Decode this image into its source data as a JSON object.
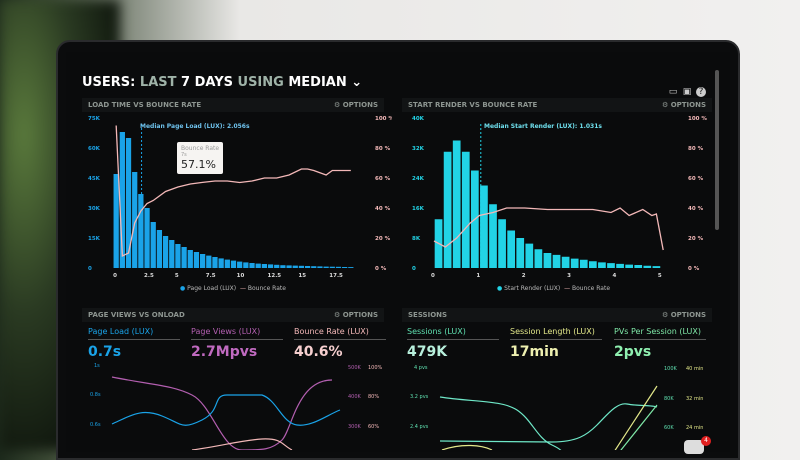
{
  "header": {
    "prefix": "USERS:",
    "range_dim": "LAST",
    "range": "7 DAYS",
    "using": "USING",
    "stat": "MEDIAN",
    "chevron": "chevron-down-icon",
    "icons": [
      "monitor-icon",
      "image-icon",
      "help-icon"
    ]
  },
  "options_label": "OPTIONS",
  "panels": [
    {
      "title": "LOAD TIME VS BOUNCE RATE",
      "median_label": "Median Page Load (LUX): 2.056s",
      "tooltip": {
        "title": "Bounce Rate",
        "sub": "7s",
        "value": "57.1%"
      },
      "legend": [
        "Page Load (LUX)",
        "Bounce Rate"
      ]
    },
    {
      "title": "START RENDER VS BOUNCE RATE",
      "median_label": "Median Start Render (LUX): 1.031s",
      "legend": [
        "Start Render (LUX)",
        "Bounce Rate"
      ]
    },
    {
      "title": "PAGE VIEWS VS ONLOAD",
      "kpis": [
        {
          "label": "Page Load (LUX)",
          "value": "0.7s"
        },
        {
          "label": "Page Views (LUX)",
          "value": "2.7Mpvs"
        },
        {
          "label": "Bounce Rate (LUX)",
          "value": "40.6%"
        }
      ],
      "left_ticks": [
        "1s",
        "0.8s",
        "0.6s"
      ],
      "right_ticks1": [
        "500K",
        "400K",
        "300K"
      ],
      "right_ticks2": [
        "100%",
        "80%",
        "60%"
      ]
    },
    {
      "title": "SESSIONS",
      "kpis": [
        {
          "label": "Sessions (LUX)",
          "value": "479K"
        },
        {
          "label": "Session Length (LUX)",
          "value": "17min"
        },
        {
          "label": "PVs Per Session (LUX)",
          "value": "2pvs"
        }
      ],
      "left_ticks": [
        "4 pvs",
        "3.2 pvs",
        "2.4 pvs"
      ],
      "right_ticks1": [
        "100K",
        "80K",
        "60K"
      ],
      "right_ticks2": [
        "40 min",
        "32 min",
        "24 min"
      ]
    }
  ],
  "notification_count": "4",
  "colors": {
    "blue": "#1aa3e8",
    "cyan": "#22d3e6",
    "pink": "#f3b8b8",
    "purple": "#b35fb0",
    "green": "#5fe0b0",
    "yellow": "#e3e88a"
  },
  "chart_data": [
    {
      "type": "bar",
      "title": "LOAD TIME VS BOUNCE RATE",
      "x": [
        0,
        0.5,
        1,
        1.5,
        2,
        2.5,
        3,
        3.5,
        4,
        4.5,
        5,
        5.5,
        6,
        6.5,
        7,
        7.5,
        8,
        8.5,
        9,
        9.5,
        10,
        10.5,
        11,
        11.5,
        12,
        12.5,
        13,
        13.5,
        14,
        14.5,
        15,
        15.5,
        16,
        16.5,
        17,
        17.5,
        18,
        18.5,
        19
      ],
      "xticks": [
        "0",
        "2.5",
        "5",
        "7.5",
        "10",
        "12.5",
        "15",
        "17.5"
      ],
      "yticks": [
        "0",
        "15K",
        "30K",
        "45K",
        "60K",
        "75K"
      ],
      "y2ticks": [
        "0 %",
        "20 %",
        "40 %",
        "60 %",
        "80 %",
        "100 %"
      ],
      "ylim": [
        0,
        75000
      ],
      "y2lim": [
        0,
        100
      ],
      "series": [
        {
          "name": "Page Load (LUX)",
          "values": [
            47000,
            68000,
            65000,
            48000,
            37000,
            30000,
            23000,
            19000,
            16000,
            14000,
            12000,
            10500,
            9000,
            8000,
            7000,
            6200,
            5500,
            4800,
            4200,
            3700,
            3200,
            2800,
            2500,
            2200,
            2000,
            1800,
            1600,
            1400,
            1300,
            1200,
            1100,
            1000,
            900,
            800,
            700,
            650,
            600,
            500,
            450
          ]
        },
        {
          "name": "Bounce Rate",
          "type": "line",
          "x": [
            0,
            0.5,
            1,
            1.5,
            2,
            2.5,
            3,
            4,
            5,
            6,
            7,
            8,
            9,
            10,
            11,
            12,
            13,
            14,
            15,
            15.5,
            16,
            17,
            17.5,
            18,
            19
          ],
          "values": [
            95,
            8,
            10,
            30,
            38,
            43,
            45,
            51,
            54,
            56,
            57.1,
            58,
            58,
            57,
            58,
            60,
            60,
            62,
            66,
            66,
            65,
            62,
            65,
            65,
            65
          ]
        }
      ]
    },
    {
      "type": "bar",
      "title": "START RENDER VS BOUNCE RATE",
      "x": [
        0.1,
        0.3,
        0.5,
        0.7,
        0.9,
        1.1,
        1.3,
        1.5,
        1.7,
        1.9,
        2.1,
        2.3,
        2.5,
        2.7,
        2.9,
        3.1,
        3.3,
        3.5,
        3.7,
        3.9,
        4.1,
        4.3,
        4.5,
        4.7,
        4.9
      ],
      "xticks": [
        "0",
        "1",
        "2",
        "3",
        "4",
        "5"
      ],
      "yticks": [
        "0",
        "8K",
        "16K",
        "24K",
        "32K",
        "40K"
      ],
      "y2ticks": [
        "0 %",
        "20 %",
        "40 %",
        "60 %",
        "80 %",
        "100 %"
      ],
      "ylim": [
        0,
        40000
      ],
      "y2lim": [
        0,
        100
      ],
      "series": [
        {
          "name": "Start Render (LUX)",
          "values": [
            13000,
            31000,
            34000,
            31000,
            26000,
            22000,
            17000,
            13000,
            10000,
            8000,
            6500,
            5000,
            4000,
            3500,
            3000,
            2500,
            2200,
            1800,
            1500,
            1300,
            1100,
            900,
            800,
            600,
            500
          ]
        },
        {
          "name": "Bounce Rate",
          "type": "line",
          "x": [
            0,
            0.25,
            0.5,
            0.8,
            1,
            1.3,
            1.6,
            2,
            2.5,
            3,
            3.5,
            3.9,
            4.1,
            4.3,
            4.6,
            4.8,
            4.9,
            5.05
          ],
          "values": [
            18,
            14,
            20,
            30,
            35,
            37,
            40,
            40,
            39,
            39,
            39,
            37,
            40,
            35,
            39,
            35,
            36,
            12
          ]
        }
      ]
    }
  ]
}
